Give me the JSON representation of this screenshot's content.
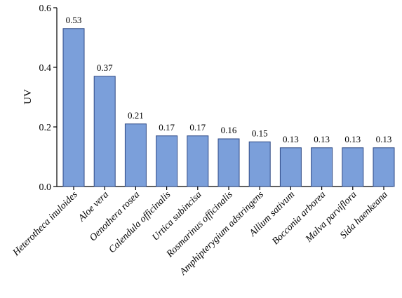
{
  "chart_data": {
    "type": "bar",
    "categories": [
      "Heterotheca inuloides",
      "Aloe vera",
      "Oenothera rosea",
      "Calendula officinalis",
      "Urtica subincisa",
      "Rosmarinus officinalis",
      "Amphipterygium adstringens",
      "Allium sativum",
      "Bocconia arborea",
      "Malva parviflora",
      "Sida haenkeana"
    ],
    "values": [
      0.53,
      0.37,
      0.21,
      0.17,
      0.17,
      0.16,
      0.15,
      0.13,
      0.13,
      0.13,
      0.13
    ],
    "value_labels": [
      "0.53",
      "0.37",
      "0.21",
      "0.17",
      "0.17",
      "0.16",
      "0.15",
      "0.13",
      "0.13",
      "0.13",
      "0.13"
    ],
    "title": "",
    "xlabel": "",
    "ylabel": "UV",
    "ylim": [
      0,
      0.6
    ],
    "yticks": [
      0.0,
      0.2,
      0.4,
      0.6
    ],
    "ytick_labels": [
      "0.0",
      "0.2",
      "0.4",
      "0.6"
    ],
    "grid": false,
    "legend": "none",
    "bar_color": "#7b9fda",
    "bar_edge_color": "#2f4a86"
  }
}
